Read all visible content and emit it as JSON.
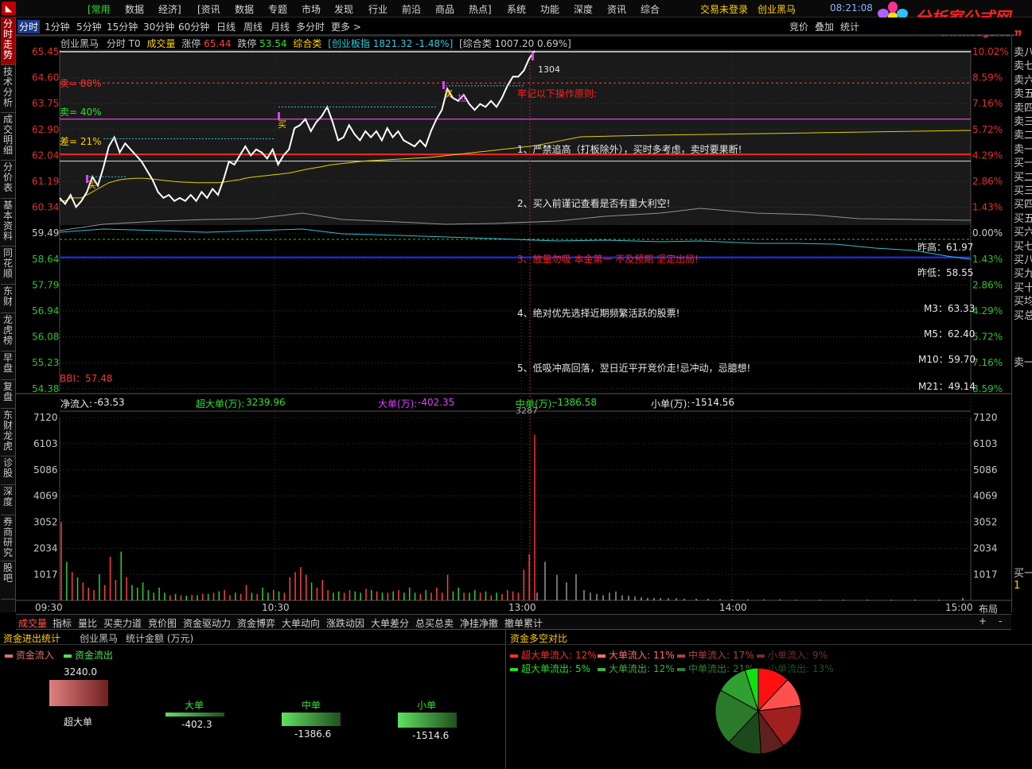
{
  "menu": {
    "items": [
      "[常用",
      "数据",
      "经济]",
      "[资讯",
      "数据",
      "专题",
      "市场",
      "发现",
      "行业",
      "前沿",
      "商品",
      "热点]",
      "系统",
      "功能",
      "深度",
      "资讯",
      "综合"
    ],
    "login": "交易未登录",
    "stock": "创业黑马",
    "time": "08:21:08",
    "watermark": "分析家公式网",
    "watermark_url": "www.88gs.com"
  },
  "periods": {
    "items": [
      "分时",
      "1分钟",
      "5分钟",
      "15分钟",
      "30分钟",
      "60分钟",
      "日线",
      "周线",
      "月线",
      "多分时",
      "更多 >"
    ],
    "right": [
      "竞价",
      "叠加",
      "统计"
    ]
  },
  "left_tabs": [
    "分时走势",
    "技术分析",
    "成交明细",
    "分价表",
    "基本资料",
    "同花顺",
    "东财",
    "龙虎榜",
    "早盘",
    "复盘",
    "东财龙虎",
    "诊股",
    "深度",
    "券商研究",
    "股吧"
  ],
  "right_quotes": [
    "卖八",
    "卖七",
    "卖六",
    "卖五",
    "卖四",
    "卖三",
    "卖二",
    "卖一",
    "买一",
    "买二",
    "买三",
    "买四",
    "买五",
    "买六",
    "买七",
    "买八",
    "买九",
    "买十",
    "买均",
    "买总"
  ],
  "right_quotes_extra": [
    "卖一",
    "买一",
    "1"
  ],
  "header": {
    "name": "创业黑马",
    "mode": "分时 T0",
    "vol_label": "成交量",
    "limit_up": "涨停",
    "limit_up_val": "65.44",
    "limit_down": "跌停",
    "limit_down_val": "53.54",
    "index1": "综合类",
    "index2": "[创业板指 1821.32 -1.48%]",
    "index3": "[综合类 1007.20 0.69%]"
  },
  "price_axis": [
    "65.45",
    "64.60",
    "63.75",
    "62.90",
    "62.04",
    "61.19",
    "60.34",
    "59.49",
    "58.64",
    "57.79",
    "56.94",
    "56.08",
    "55.23",
    "54.38"
  ],
  "pct_axis": [
    "10.02%",
    "8.59%",
    "7.16%",
    "5.72%",
    "4.29%",
    "2.86%",
    "1.43%",
    "0.00%",
    "1.43%",
    "2.86%",
    "4.29%",
    "5.72%",
    "7.16%",
    "8.59%"
  ],
  "vol_axis": [
    "7120",
    "6103",
    "5086",
    "4069",
    "3052",
    "2034",
    "1017"
  ],
  "time_axis": [
    "09:30",
    "10:30",
    "13:00",
    "14:00",
    "15:00"
  ],
  "zones": {
    "sell80": "卖= 80%",
    "sell40": "卖= 40%",
    "diff21": "差= 21%"
  },
  "marks": {
    "m1": "买",
    "m2": "买",
    "m3": "买",
    "m4": "拉",
    "m5": "1304",
    "m6": "牢"
  },
  "ref_labels": {
    "prev_high": "昨高：61.97",
    "prev_low": "昨低：58.55",
    "m3": "M3：63.33",
    "m5": "M5：62.40",
    "m10": "M10：59.70",
    "m21": "M21：49.14",
    "bbi": "BBI：57.48"
  },
  "rules": {
    "title": "牢记以下操作原则:",
    "r1": "1、严禁追高（打板除外），买时多考虑，卖时要果断!",
    "r2": "2、买入前谨记查看是否有重大利空!",
    "r3": "3、放量勿吸  本金第一  不及预期  坚定出局!",
    "r4": "4、绝对优先选择近期频繁活跃的股票!",
    "r5": "5、低吸冲高回落，翌日近平开竞价走!忌冲动，忌臆想!"
  },
  "flow": {
    "net_label": "净流入:",
    "net": "-63.53",
    "super_label": "超大单(万):",
    "super": "3239.96",
    "big_label": "大单(万):",
    "big": "-402.35",
    "mid_label": "中单(万):",
    "mid": "-1386.58",
    "small_label": "小单(万):",
    "small": "-1514.56",
    "peak_label": "3287"
  },
  "bottom_tabs": [
    "成交量",
    "指标",
    "量比",
    "买卖力道",
    "竞价图",
    "资金驱动力",
    "资金博弈",
    "大单动向",
    "涨跌动因",
    "大单差分",
    "总买总卖",
    "净挂净撤",
    "撤单累计"
  ],
  "layout_btn": "布局",
  "flow_panel": {
    "title": "资金进出统计",
    "stock": "创业黑马",
    "unit": "统计金额 (万元)",
    "legend_in": "资金流入",
    "legend_out": "资金流出",
    "super_name": "超大单",
    "super_val": "3240.0",
    "big_name": "大单",
    "big_val": "-402.3",
    "mid_name": "中单",
    "mid_val": "-1386.6",
    "small_name": "小单",
    "small_val": "-1514.6"
  },
  "ratio_panel": {
    "title": "资金多空对比",
    "in_items": [
      {
        "label": "超大单流入:",
        "pct": "12%",
        "color": "#ff3030"
      },
      {
        "label": "大单流入:",
        "pct": "11%",
        "color": "#ff7070"
      },
      {
        "label": "中单流入:",
        "pct": "17%",
        "color": "#b04040"
      },
      {
        "label": "小单流入:",
        "pct": "9%",
        "color": "#703030"
      }
    ],
    "out_items": [
      {
        "label": "超大单流出:",
        "pct": "5%",
        "color": "#20e020"
      },
      {
        "label": "大单流出:",
        "pct": "12%",
        "color": "#40b040"
      },
      {
        "label": "中单流出:",
        "pct": "21%",
        "color": "#308030"
      },
      {
        "label": "小单流出:",
        "pct": "13%",
        "color": "#205020"
      }
    ],
    "pie": [
      {
        "label": "超大单流入",
        "value": 12,
        "color": "#ff1010"
      },
      {
        "label": "大单流入",
        "value": 11,
        "color": "#ff5050"
      },
      {
        "label": "中单流入",
        "value": 17,
        "color": "#a02020"
      },
      {
        "label": "小单流入",
        "value": 9,
        "color": "#602020"
      },
      {
        "label": "小单流出",
        "value": 13,
        "color": "#1c4a1c"
      },
      {
        "label": "中单流出",
        "value": 21,
        "color": "#2a7a2a"
      },
      {
        "label": "大单流出",
        "value": 12,
        "color": "#30a030"
      },
      {
        "label": "超大单流出",
        "value": 5,
        "color": "#10e010"
      }
    ]
  },
  "chart_data": {
    "type": "line",
    "title": "创业黑马 分时",
    "price_range": [
      54.38,
      65.45
    ],
    "prev_close": 59.49,
    "price": [
      60.6,
      60.4,
      60.7,
      60.3,
      60.5,
      60.8,
      61.3,
      61.0,
      61.6,
      62.3,
      62.6,
      62.1,
      62.4,
      62.2,
      62.0,
      61.8,
      61.5,
      61.2,
      60.8,
      60.6,
      60.7,
      60.5,
      60.6,
      60.5,
      60.7,
      60.5,
      60.8,
      60.6,
      60.9,
      60.7,
      61.2,
      61.8,
      61.7,
      62.0,
      62.3,
      62.0,
      62.2,
      62.1,
      61.9,
      62.2,
      61.7,
      62.0,
      62.2,
      62.9,
      63.0,
      63.2,
      62.8,
      63.1,
      63.3,
      63.6,
      63.1,
      62.5,
      62.6,
      63.0,
      62.7,
      62.5,
      62.8,
      62.6,
      62.8,
      62.5,
      62.9,
      62.6,
      62.8,
      62.5,
      62.4,
      62.3,
      62.5,
      62.3,
      62.8,
      63.2,
      63.5,
      64.2,
      63.9,
      63.8,
      64.0,
      63.7,
      63.5,
      63.7,
      63.6,
      63.8,
      63.6,
      63.9,
      64.3,
      64.6,
      64.6,
      64.8,
      65.2,
      65.45
    ],
    "avg": [
      60.5,
      60.5,
      60.6,
      60.6,
      60.6,
      60.7,
      60.8,
      60.9,
      61.0,
      61.1,
      61.15,
      61.2,
      61.22,
      61.24,
      61.25,
      61.25,
      61.24,
      61.22,
      61.2,
      61.18,
      61.16,
      61.14,
      61.13,
      61.12,
      61.11,
      61.1,
      61.1,
      61.1,
      61.1,
      61.1,
      61.12,
      61.15,
      61.18,
      61.2,
      61.25,
      61.28,
      61.3,
      61.32,
      61.34,
      61.36,
      61.38,
      61.4,
      61.42,
      61.46,
      61.5,
      61.54,
      61.57,
      61.6,
      61.63,
      61.67,
      61.7,
      61.72,
      61.74,
      61.76,
      61.78,
      61.8,
      61.82,
      61.83,
      61.84,
      61.85,
      61.86,
      61.87,
      61.88,
      61.89,
      61.9,
      61.91,
      61.92,
      61.93,
      61.94,
      61.96,
      61.98,
      62.0,
      62.02,
      62.04,
      62.06,
      62.08,
      62.1,
      62.12,
      62.14,
      62.16,
      62.18,
      62.2,
      62.22,
      62.24,
      62.26,
      62.28,
      62.3,
      62.32
    ],
    "volume": [
      3052,
      1500,
      1100,
      900,
      700,
      500,
      400,
      1017,
      600,
      1700,
      800,
      1900,
      900,
      600,
      500,
      700,
      400,
      300,
      500,
      300,
      200,
      250,
      200,
      180,
      220,
      200,
      260,
      250,
      300,
      350,
      400,
      200,
      300,
      250,
      600,
      300,
      250,
      500,
      300,
      400,
      350,
      300,
      900,
      1100,
      1300,
      1000,
      700,
      500,
      800,
      400,
      300,
      350,
      300,
      400,
      350,
      300,
      450,
      400,
      350,
      300,
      300,
      350,
      400,
      300,
      500,
      300,
      250,
      400,
      300,
      500,
      300,
      1000,
      350,
      500,
      300,
      300,
      400,
      300,
      350,
      200,
      300,
      250,
      400,
      350,
      300,
      1200,
      1800,
      6450
    ],
    "volume_range": [
      0,
      7120
    ],
    "times": [
      "09:30",
      "10:30",
      "13:00",
      "14:00",
      "15:00"
    ]
  }
}
